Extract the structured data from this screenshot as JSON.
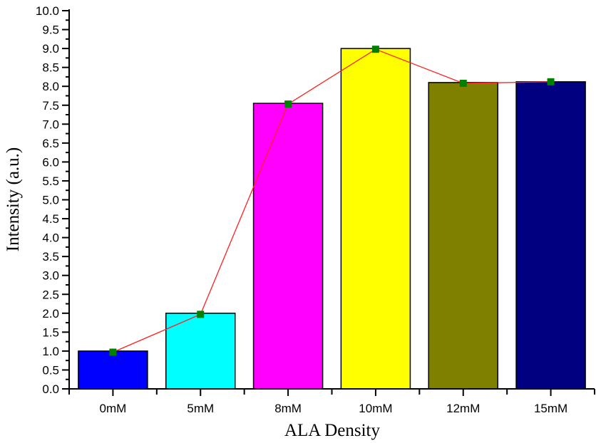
{
  "chart_data": {
    "type": "bar",
    "xlabel": "ALA Density",
    "ylabel": "Intensity (a.u.)",
    "ylim": [
      0,
      10
    ],
    "ytick_step": 0.5,
    "ytick_labels": [
      "0.0",
      "0.5",
      "1.0",
      "1.5",
      "2.0",
      "2.5",
      "3.0",
      "3.5",
      "4.0",
      "4.5",
      "5.0",
      "5.5",
      "6.0",
      "6.5",
      "7.0",
      "7.5",
      "8.0",
      "8.5",
      "9.0",
      "9.5",
      "10.0"
    ],
    "categories": [
      "0mM",
      "5mM",
      "8mM",
      "10mM",
      "12mM",
      "15mM"
    ],
    "values": [
      1.0,
      2.0,
      7.55,
      9.0,
      8.1,
      8.12
    ],
    "bar_colors": [
      "#0000ff",
      "#00ffff",
      "#ff00ff",
      "#ffff00",
      "#808000",
      "#000080"
    ],
    "line_overlay": {
      "values": [
        0.97,
        1.97,
        7.53,
        8.98,
        8.08,
        8.12
      ],
      "line_color": "#ff2020",
      "marker_color": "#008000",
      "marker": "square"
    },
    "grid": false,
    "legend": "none"
  }
}
